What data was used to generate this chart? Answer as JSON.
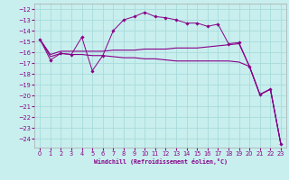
{
  "xlabel": "Windchill (Refroidissement éolien,°C)",
  "bg_color": "#c8eeee",
  "grid_color": "#a8dcdc",
  "line_color": "#880088",
  "ylim_top": -11.5,
  "ylim_bottom": -24.8,
  "xlim_left": -0.5,
  "xlim_right": 23.5,
  "ytick_values": [
    -12,
    -13,
    -14,
    -15,
    -16,
    -17,
    -18,
    -19,
    -20,
    -21,
    -22,
    -23,
    -24
  ],
  "xtick_values": [
    0,
    1,
    2,
    3,
    4,
    5,
    6,
    7,
    8,
    9,
    10,
    11,
    12,
    13,
    14,
    15,
    16,
    17,
    18,
    19,
    20,
    21,
    22,
    23
  ],
  "s1_x": [
    0,
    1,
    2,
    3,
    4,
    5,
    6,
    7,
    8,
    9,
    10,
    11,
    12,
    13,
    14,
    15,
    16,
    17,
    18,
    19,
    20,
    21,
    22,
    23
  ],
  "s1_y": [
    -14.8,
    -16.7,
    -16.1,
    -16.2,
    -14.6,
    -17.7,
    -16.3,
    -14.0,
    -13.0,
    -12.7,
    -12.3,
    -12.7,
    -12.8,
    -13.0,
    -13.3,
    -13.3,
    -13.6,
    -13.4,
    -15.2,
    -15.1,
    -17.3,
    -19.9,
    -19.4,
    -24.5
  ],
  "s2_x": [
    0,
    1,
    2,
    3,
    4,
    5,
    6,
    7,
    8,
    9,
    10,
    11,
    12,
    13,
    14,
    15,
    16,
    17,
    18,
    19,
    20,
    21,
    22,
    23
  ],
  "s2_y": [
    -14.8,
    -16.2,
    -15.9,
    -15.9,
    -15.9,
    -15.9,
    -15.9,
    -15.8,
    -15.8,
    -15.8,
    -15.7,
    -15.7,
    -15.7,
    -15.6,
    -15.6,
    -15.6,
    -15.5,
    -15.4,
    -15.3,
    -15.2,
    -17.3,
    -19.9,
    -19.4,
    -24.5
  ],
  "s3_x": [
    0,
    1,
    2,
    3,
    4,
    5,
    6,
    7,
    8,
    9,
    10,
    11,
    12,
    13,
    14,
    15,
    16,
    17,
    18,
    19,
    20,
    21,
    22,
    23
  ],
  "s3_y": [
    -14.8,
    -16.4,
    -16.1,
    -16.2,
    -16.2,
    -16.3,
    -16.3,
    -16.4,
    -16.5,
    -16.5,
    -16.6,
    -16.6,
    -16.7,
    -16.8,
    -16.8,
    -16.8,
    -16.8,
    -16.8,
    -16.8,
    -16.9,
    -17.3,
    -19.9,
    -19.4,
    -24.5
  ]
}
